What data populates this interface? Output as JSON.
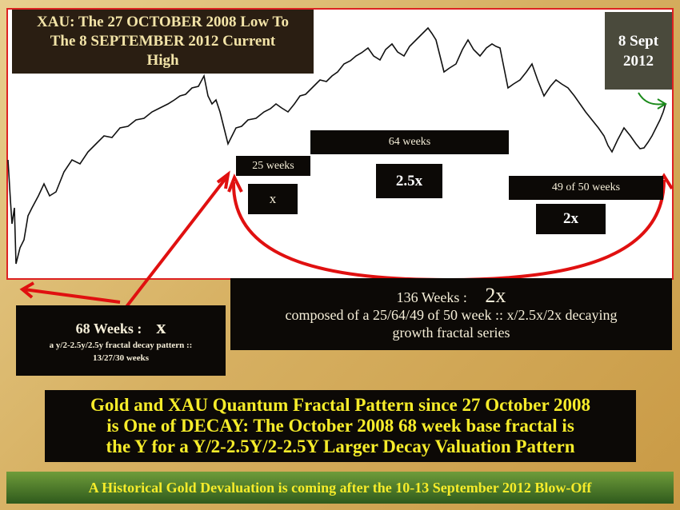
{
  "title": {
    "lines": [
      "XAU: The 27 OCTOBER 2008 Low To",
      "The 8 SEPTEMBER 2012 Current",
      "High"
    ]
  },
  "date_box": {
    "lines": [
      "8 Sept",
      "2012"
    ]
  },
  "labels": {
    "weeks_25": "25 weeks",
    "x": "x",
    "weeks_64": "64 weeks",
    "x_25": "2.5x",
    "weeks_49": "49 of 50 weeks",
    "x_2": "2x"
  },
  "box_136": {
    "head": "136 Weeks :",
    "factor": "2x",
    "lines": [
      "composed of a 25/64/49 of 50 week :: x/2.5x/2x decaying",
      "growth fractal series"
    ]
  },
  "box_68": {
    "head": "68 Weeks :",
    "factor": "x",
    "lines": [
      "a y/2-2.5y/2.5y fractal decay pattern ::",
      "13/27/30 weeks"
    ]
  },
  "headline": {
    "lines": [
      "Gold and XAU Quantum Fractal Pattern since 27 October 2008",
      "is One of DECAY: The October 2008  68 week base fractal is",
      "the Y for a Y/2-2.5Y/2-2.5Y Larger Decay Valuation Pattern"
    ]
  },
  "footer": "A Historical Gold Devaluation is coming after the 10-13 September 2012 Blow-Off"
}
